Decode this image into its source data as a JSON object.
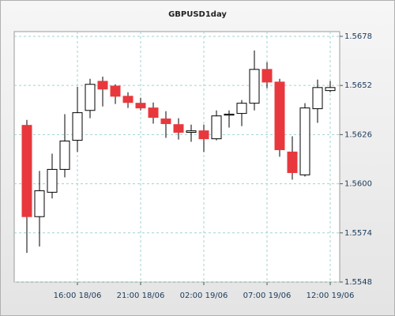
{
  "chart_data": {
    "type": "candlestick",
    "title": "GBPUSD1day",
    "categories": [
      null,
      null,
      null,
      null,
      "16:00 18/06",
      null,
      null,
      null,
      null,
      "21:00 18/06",
      null,
      null,
      null,
      null,
      "02:00 19/06",
      null,
      null,
      null,
      null,
      "07:00 19/06",
      null,
      null,
      null,
      null,
      "12:00 19/06"
    ],
    "series": [
      {
        "up_color": "#ffffff",
        "down_color": "#e8383d",
        "open": [
          1.56309,
          1.55826,
          1.55955,
          1.56076,
          1.5623,
          1.56388,
          1.56542,
          1.56517,
          1.56463,
          1.56426,
          1.56401,
          1.56343,
          1.56313,
          1.56272,
          1.5628,
          1.56238,
          1.56363,
          1.56372,
          1.56426,
          1.56605,
          1.56538,
          1.56168,
          1.56047,
          1.56397,
          1.56493
        ],
        "high": [
          1.56338,
          1.56068,
          1.56159,
          1.56368,
          1.56513,
          1.56555,
          1.56567,
          1.56526,
          1.56484,
          1.56455,
          1.5643,
          1.56384,
          1.56347,
          1.56313,
          1.56313,
          1.56388,
          1.56388,
          1.56443,
          1.56705,
          1.56643,
          1.56555,
          1.56251,
          1.56426,
          1.56551,
          1.56543
        ],
        "low": [
          1.55634,
          1.55668,
          1.55922,
          1.56034,
          1.56168,
          1.56347,
          1.56409,
          1.56422,
          1.56401,
          1.56388,
          1.56318,
          1.56243,
          1.56234,
          1.56222,
          1.56168,
          1.5623,
          1.56297,
          1.56305,
          1.56388,
          1.56505,
          1.56143,
          1.56022,
          1.56038,
          1.56322,
          1.56484
        ],
        "close": [
          1.55826,
          1.55963,
          1.56076,
          1.56226,
          1.56376,
          1.56526,
          1.56501,
          1.56463,
          1.5643,
          1.56401,
          1.56351,
          1.56318,
          1.56272,
          1.5628,
          1.56238,
          1.56359,
          1.56368,
          1.56426,
          1.56605,
          1.56538,
          1.5618,
          1.56059,
          1.56401,
          1.56509,
          1.56509
        ]
      }
    ],
    "ylim": [
      1.5548,
      1.56805
    ],
    "yticks": [
      1.5548,
      1.5574,
      1.56,
      1.5626,
      1.5652,
      1.5678
    ],
    "ytick_labels": [
      "1.5548",
      "1.5574",
      "1.5600",
      "1.5626",
      "1.5652",
      "1.5678"
    ],
    "grid": true
  }
}
